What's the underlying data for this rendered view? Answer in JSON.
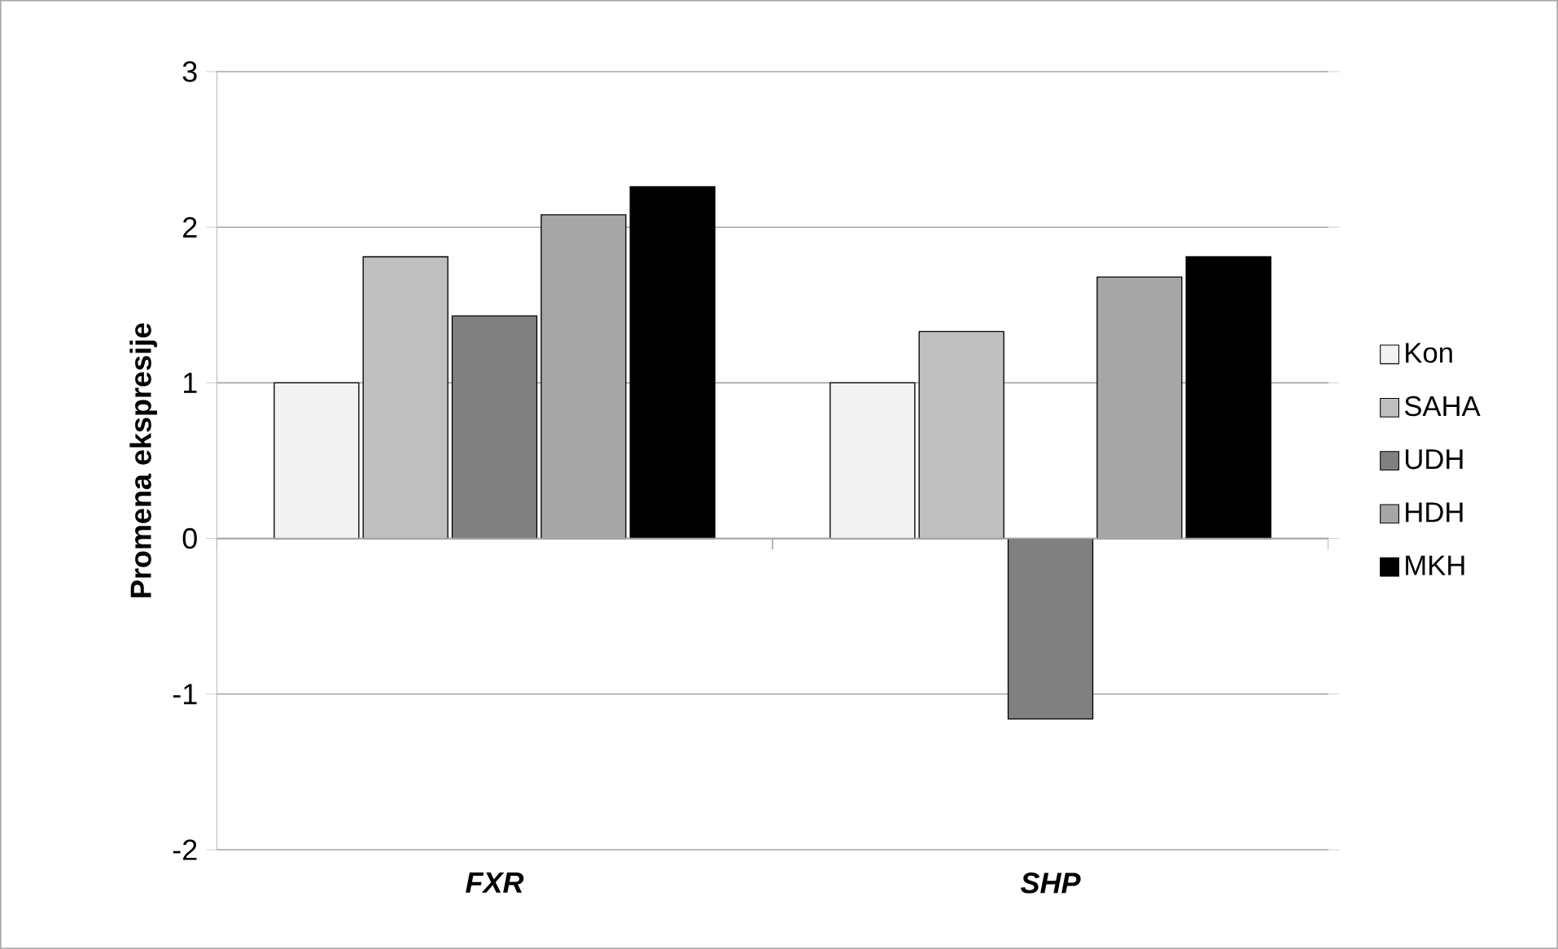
{
  "chart_data": {
    "type": "bar",
    "ylabel": "Promena ekspresije",
    "categories": [
      "FXR",
      "SHP"
    ],
    "series": [
      {
        "name": "Kon",
        "color": "#f2f2f2",
        "values": [
          1.0,
          1.0
        ]
      },
      {
        "name": "SAHA",
        "color": "#bfbfbf",
        "values": [
          1.81,
          1.33
        ]
      },
      {
        "name": "UDH",
        "color": "#808080",
        "values": [
          1.43,
          -1.16
        ]
      },
      {
        "name": "HDH",
        "color": "#a6a6a6",
        "values": [
          2.08,
          1.68
        ]
      },
      {
        "name": "MKH",
        "color": "#000000",
        "values": [
          2.26,
          1.81
        ]
      }
    ],
    "ylim": [
      -2,
      3
    ],
    "yticks": [
      -2,
      -1,
      0,
      1,
      2,
      3
    ],
    "grid": "y",
    "legend": "right"
  }
}
